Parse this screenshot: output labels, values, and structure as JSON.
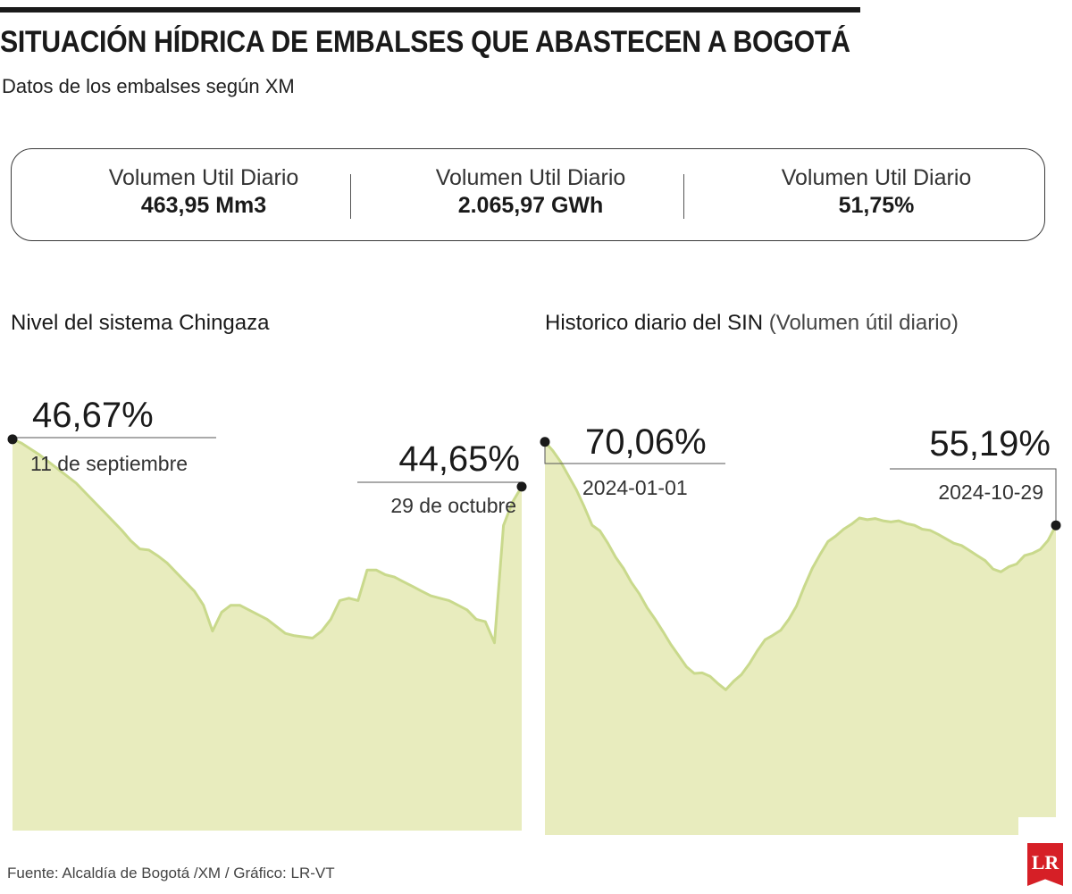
{
  "header": {
    "title": "SITUACIÓN HÍDRICA DE EMBALSES QUE ABASTECEN A BOGOTÁ",
    "subtitle": "Datos de los embalses según XM"
  },
  "stats": [
    {
      "label": "Volumen Util Diario",
      "value": "463,95 Mm3"
    },
    {
      "label": "Volumen Util Diario",
      "value": "2.065,97 GWh"
    },
    {
      "label": "Volumen Util Diario",
      "value": "51,75%"
    }
  ],
  "colors": {
    "fill": "#e8ecbe",
    "line": "#c9d98c",
    "text": "#1f1f1f"
  },
  "chart_data": [
    {
      "type": "area",
      "title": "Nivel del sistema Chingaza",
      "y_min": 30,
      "ylim": [
        30,
        47.5
      ],
      "values": [
        46.67,
        46.5,
        46.25,
        46.0,
        45.7,
        45.4,
        45.1,
        44.8,
        44.4,
        44.0,
        43.6,
        43.2,
        42.8,
        42.35,
        42.0,
        41.95,
        41.7,
        41.4,
        41.0,
        40.6,
        40.2,
        39.6,
        38.5,
        39.3,
        39.6,
        39.6,
        39.4,
        39.2,
        39.0,
        38.7,
        38.4,
        38.3,
        38.25,
        38.2,
        38.5,
        39.0,
        39.8,
        39.9,
        39.8,
        41.1,
        41.1,
        40.9,
        40.8,
        40.6,
        40.4,
        40.2,
        40.0,
        39.9,
        39.8,
        39.6,
        39.4,
        39.0,
        38.9,
        38.0,
        43.0,
        44.0,
        44.65
      ],
      "annotations": [
        {
          "value": "46,67%",
          "date": "11 de septiembre"
        },
        {
          "value": "44,65%",
          "date": "29 de octubre"
        }
      ]
    },
    {
      "type": "area",
      "title": "Historico diario del SIN",
      "title_note": "(Volumen útil diario)",
      "y_min": 0,
      "ylim": [
        0,
        74
      ],
      "values": [
        70.06,
        68.5,
        66.5,
        64.0,
        61.5,
        58.5,
        55.2,
        54.2,
        52.0,
        49.5,
        47.5,
        45.0,
        43.0,
        40.5,
        38.5,
        36.3,
        34.0,
        32.0,
        30.0,
        28.8,
        28.9,
        28.3,
        27.0,
        25.9,
        27.4,
        28.6,
        30.5,
        32.8,
        34.8,
        35.6,
        36.5,
        38.4,
        40.8,
        44.3,
        47.5,
        50.0,
        52.3,
        53.3,
        54.5,
        55.4,
        56.5,
        56.2,
        56.4,
        56.0,
        55.8,
        56.0,
        55.5,
        55.2,
        54.5,
        54.3,
        53.6,
        52.8,
        52.0,
        51.6,
        50.7,
        49.8,
        48.9,
        47.4,
        46.9,
        47.8,
        48.3,
        49.8,
        50.2,
        50.9,
        52.5,
        55.19
      ],
      "annotations": [
        {
          "value": "70,06%",
          "date": "2024-01-01"
        },
        {
          "value": "55,19%",
          "date": "2024-10-29"
        }
      ]
    }
  ],
  "footer": {
    "source": "Fuente: Alcaldía de Bogotá /XM / Gráfico: LR-VT",
    "logo": "LR"
  }
}
